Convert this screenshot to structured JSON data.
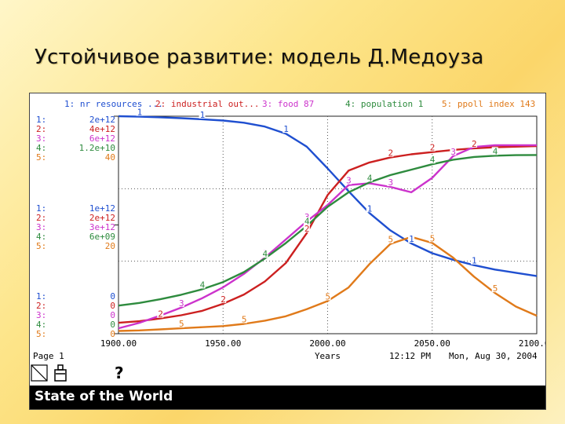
{
  "slide": {
    "title": "Устойчивое развитие: модель Д.Медоуза"
  },
  "window": {
    "status_title": "State of the World",
    "help_glyph": "?"
  },
  "legend": [
    {
      "text": "1: nr resources ...",
      "color": "#1f4fd0"
    },
    {
      "text": "2: industrial out...",
      "color": "#cc2020"
    },
    {
      "text": "3: food 87",
      "color": "#cc33cc"
    },
    {
      "text": "4: population 1",
      "color": "#2e8b3e"
    },
    {
      "text": "5: ppoll index 143",
      "color": "#e07a1a"
    }
  ],
  "scale_labels": {
    "prefixes": [
      "1:",
      "2:",
      "3:",
      "4:",
      "5:"
    ],
    "top": [
      "2e+12",
      "4e+12",
      "6e+12",
      "1.2e+10",
      "40"
    ],
    "mid": [
      "1e+12",
      "2e+12",
      "3e+12",
      "6e+09",
      "20"
    ],
    "bottom": [
      "0",
      "0",
      "0",
      "0",
      "0"
    ]
  },
  "footer": {
    "page": "Page 1",
    "axis_title": "Years",
    "time": "12:12 PM",
    "date": "Mon, Aug 30, 2004"
  },
  "chart_data": {
    "type": "line",
    "xlabel": "Years",
    "xlim": [
      1900,
      2100
    ],
    "x_ticks": [
      "1900.00",
      "1950.00",
      "2000.00",
      "2050.00",
      "2100.00"
    ],
    "grid": true,
    "legend_position": "top",
    "x": [
      1900,
      1910,
      1920,
      1930,
      1940,
      1950,
      1960,
      1970,
      1980,
      1990,
      2000,
      2010,
      2020,
      2030,
      2040,
      2050,
      2060,
      2070,
      2080,
      2090,
      2100
    ],
    "series": [
      {
        "name": "nr resources",
        "color": "#1f4fd0",
        "ylim": [
          0,
          2000000000000.0
        ],
        "values": [
          2000000000000.0,
          1996000000000.0,
          1990000000000.0,
          1982000000000.0,
          1972000000000.0,
          1960000000000.0,
          1940000000000.0,
          1905000000000.0,
          1840000000000.0,
          1720000000000.0,
          1520000000000.0,
          1310000000000.0,
          1110000000000.0,
          950000000000.0,
          830000000000.0,
          740000000000.0,
          680000000000.0,
          630000000000.0,
          590000000000.0,
          560000000000.0,
          530000000000.0
        ]
      },
      {
        "name": "industrial out",
        "color": "#cc2020",
        "ylim": [
          0,
          4000000000000.0
        ],
        "values": [
          200000000000.0,
          230000000000.0,
          280000000000.0,
          340000000000.0,
          420000000000.0,
          550000000000.0,
          720000000000.0,
          960000000000.0,
          1300000000000.0,
          1850000000000.0,
          2550000000000.0,
          3000000000000.0,
          3150000000000.0,
          3240000000000.0,
          3300000000000.0,
          3340000000000.0,
          3380000000000.0,
          3410000000000.0,
          3430000000000.0,
          3440000000000.0,
          3450000000000.0
        ]
      },
      {
        "name": "food",
        "color": "#cc33cc",
        "ylim": [
          0,
          6000000000000.0
        ],
        "values": [
          150000000000.0,
          300000000000.0,
          500000000000.0,
          720000000000.0,
          980000000000.0,
          1280000000000.0,
          1650000000000.0,
          2100000000000.0,
          2600000000000.0,
          3100000000000.0,
          3550000000000.0,
          4100000000000.0,
          4150000000000.0,
          4050000000000.0,
          3900000000000.0,
          4300000000000.0,
          4900000000000.0,
          5150000000000.0,
          5200000000000.0,
          5200000000000.0,
          5200000000000.0
        ]
      },
      {
        "name": "population",
        "color": "#2e8b3e",
        "ylim": [
          0,
          12000000000.0
        ],
        "values": [
          1550000000.0,
          1700000000.0,
          1900000000.0,
          2150000000.0,
          2450000000.0,
          2850000000.0,
          3400000000.0,
          4150000000.0,
          5000000000.0,
          5950000000.0,
          7000000000.0,
          7800000000.0,
          8350000000.0,
          8750000000.0,
          9050000000.0,
          9350000000.0,
          9600000000.0,
          9750000000.0,
          9820000000.0,
          9850000000.0,
          9860000000.0
        ]
      },
      {
        "name": "ppoll index",
        "color": "#e07a1a",
        "ylim": [
          0,
          40
        ],
        "values": [
          0.5,
          0.6,
          0.8,
          1.0,
          1.2,
          1.4,
          1.8,
          2.4,
          3.2,
          4.5,
          6.0,
          8.5,
          12.8,
          16.5,
          17.8,
          16.7,
          14.0,
          10.5,
          7.5,
          5.0,
          3.3
        ]
      }
    ]
  }
}
